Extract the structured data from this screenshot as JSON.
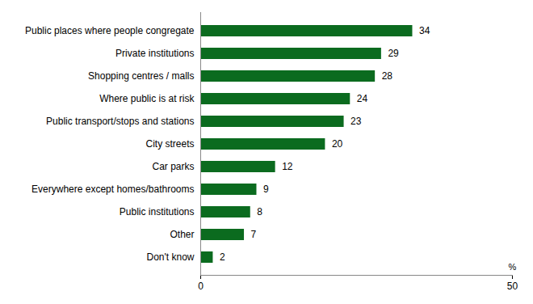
{
  "chart_data": {
    "type": "bar",
    "orientation": "horizontal",
    "categories": [
      "Public places where people congregate",
      "Private institutions",
      "Shopping centres / malls",
      "Where public is at risk",
      "Public transport/stops and stations",
      "City streets",
      "Car parks",
      "Everywhere except homes/bathrooms",
      "Public institutions",
      "Other",
      "Don't know"
    ],
    "values": [
      34,
      29,
      28,
      24,
      23,
      20,
      12,
      9,
      8,
      7,
      2
    ],
    "color": "#0b6b1f",
    "x_label": "%",
    "xlim": [
      0,
      50
    ],
    "xticks": [
      0,
      50
    ],
    "grid": false,
    "data_labels": true
  }
}
